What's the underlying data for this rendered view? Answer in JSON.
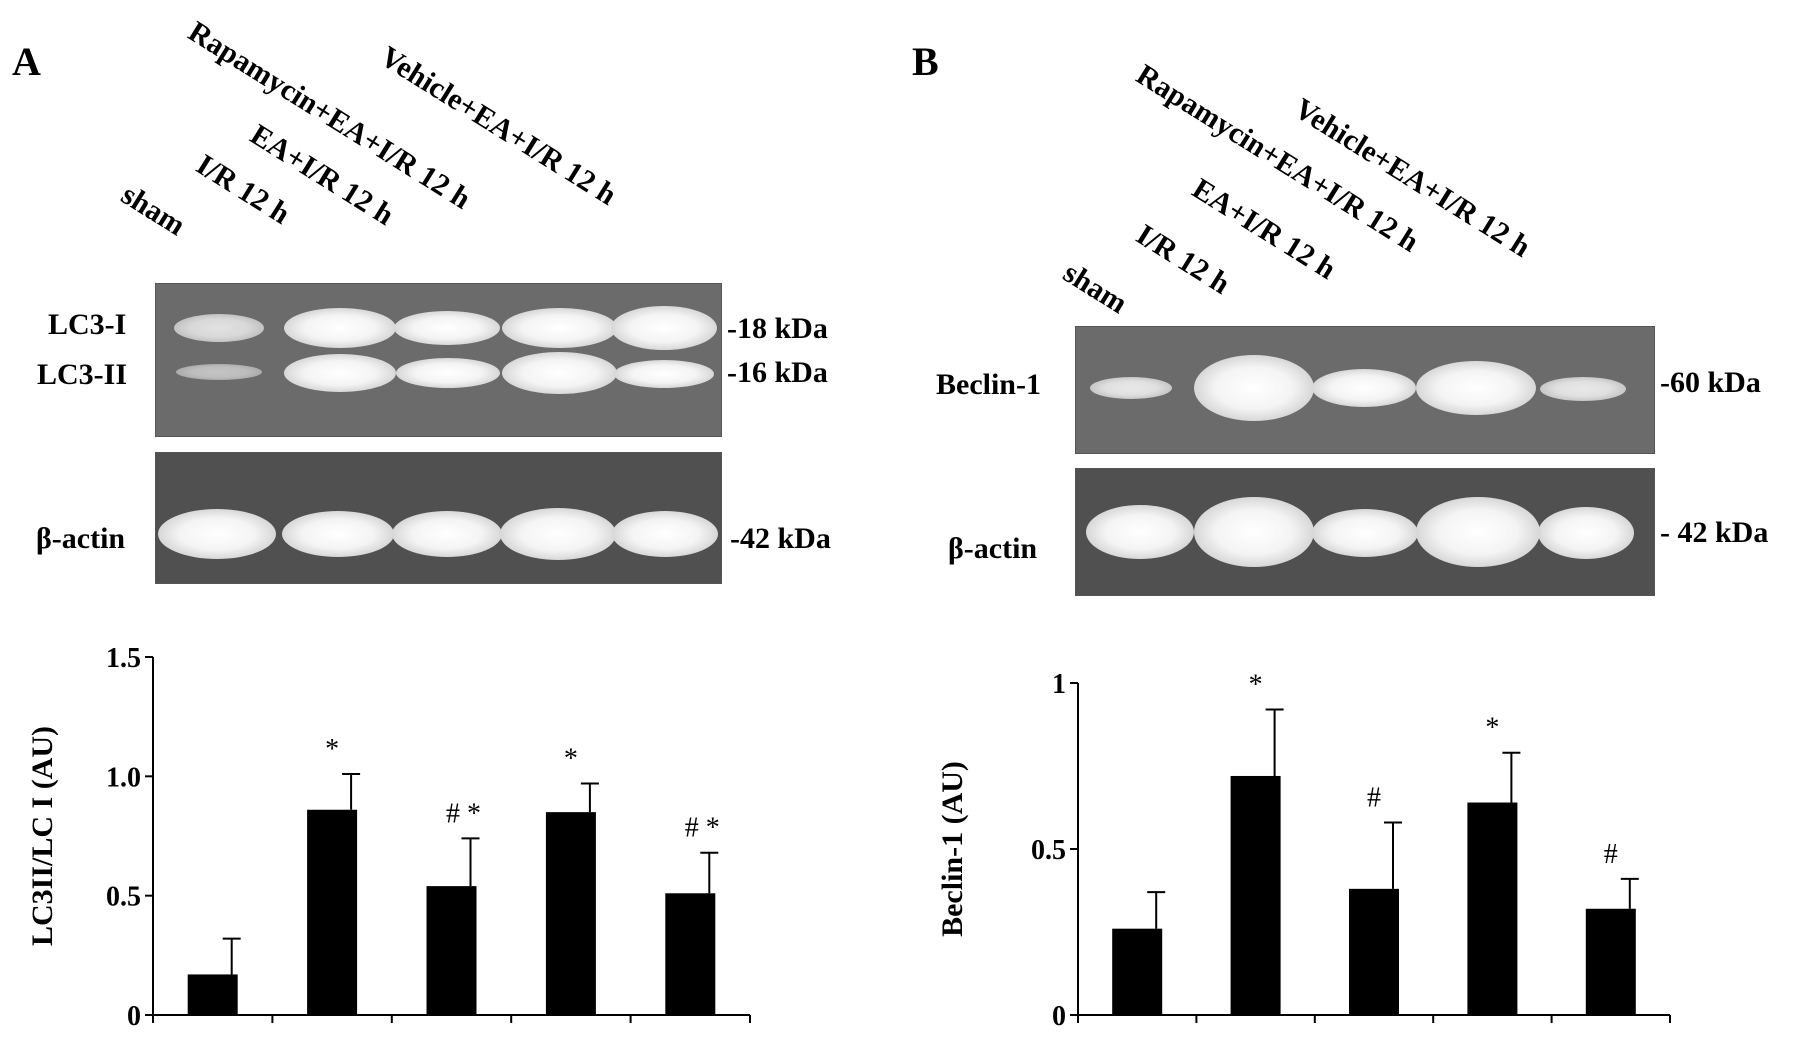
{
  "panelA": {
    "letter": "A",
    "lanes": [
      "sham",
      "I/R 12 h",
      "EA+I/R 12 h",
      "Rapamycin+EA+I/R 12 h",
      "Vehicle+EA+I/R 12 h"
    ],
    "blot_top": {
      "rows": [
        {
          "label": "LC3-I",
          "kda": "-18 kDa",
          "intensities": [
            0.55,
            0.8,
            0.75,
            0.85,
            0.95
          ]
        },
        {
          "label": "LC3-II",
          "kda": "-16 kDa",
          "intensities": [
            0.3,
            0.8,
            0.7,
            0.85,
            0.65
          ]
        }
      ]
    },
    "blot_bottom": {
      "label": "β-actin",
      "kda": "-42 kDa",
      "intensities": [
        1,
        0.95,
        0.95,
        1,
        0.95
      ]
    }
  },
  "panelB": {
    "letter": "B",
    "lanes": [
      "sham",
      "I/R 12 h",
      "EA+I/R 12 h",
      "Rapamycin+EA+I/R 12 h",
      "Vehicle+EA+I/R 12 h"
    ],
    "blot_top": {
      "label": "Beclin-1",
      "kda": "-60 kDa",
      "intensities": [
        0.4,
        1,
        0.7,
        0.9,
        0.45
      ]
    },
    "blot_bottom": {
      "label": "β-actin",
      "kda": "- 42 kDa",
      "intensities": [
        0.95,
        1,
        0.9,
        1,
        0.9
      ]
    }
  },
  "chart_data": [
    {
      "type": "bar",
      "categories": [
        "sham",
        "I/R 12 h",
        "EA+I/R 12 h",
        "Rapamycin+EA+I/R 12 h",
        "Vehicle+EA+I/R 12 h"
      ],
      "values": [
        0.17,
        0.86,
        0.54,
        0.85,
        0.51
      ],
      "errors": [
        0.15,
        0.15,
        0.2,
        0.12,
        0.17
      ],
      "annotations": [
        "",
        "*",
        "# *",
        "*",
        "# *"
      ],
      "ylabel": "LC3II/LC I (AU)",
      "ylim": [
        0,
        1.5
      ],
      "yticks": [
        "0",
        "0.5",
        "1.0",
        "1.5"
      ],
      "ytick_values": [
        0,
        0.5,
        1.0,
        1.5
      ],
      "color": "#000000"
    },
    {
      "type": "bar",
      "categories": [
        "sham",
        "I/R 12 h",
        "EA+I/R 12 h",
        "Rapamycin+EA+I/R 12 h",
        "Vehicle+EA+I/R 12 h"
      ],
      "values": [
        0.26,
        0.72,
        0.38,
        0.64,
        0.32
      ],
      "errors": [
        0.11,
        0.2,
        0.2,
        0.15,
        0.09
      ],
      "annotations": [
        "",
        "*",
        "#",
        "*",
        "#"
      ],
      "ylabel": "Beclin-1 (AU)",
      "ylim": [
        0,
        1
      ],
      "yticks": [
        "0",
        "0.5",
        "1"
      ],
      "ytick_values": [
        0,
        0.5,
        1
      ],
      "color": "#000000"
    }
  ]
}
